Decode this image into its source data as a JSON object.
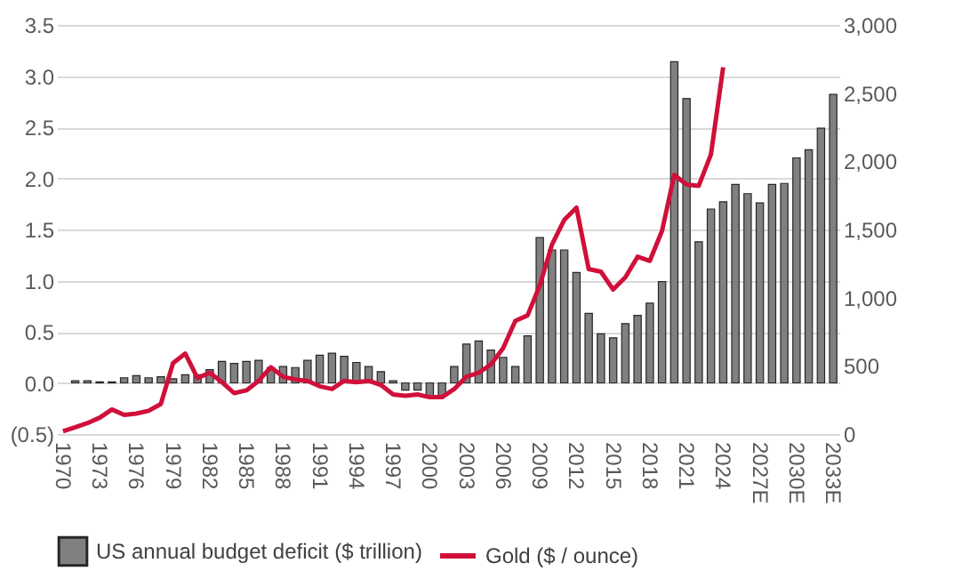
{
  "chart_data": {
    "type": "bar",
    "categories": [
      "1970",
      null,
      null,
      "1973",
      null,
      null,
      "1976",
      null,
      null,
      "1979",
      null,
      null,
      "1982",
      null,
      null,
      "1985",
      null,
      null,
      "1988",
      null,
      null,
      "1991",
      null,
      null,
      "1994",
      null,
      null,
      "1997",
      null,
      null,
      "2000",
      null,
      null,
      "2003",
      null,
      null,
      "2006",
      null,
      null,
      "2009",
      null,
      null,
      "2012",
      null,
      null,
      "2015",
      null,
      null,
      "2018",
      null,
      null,
      "2021",
      null,
      null,
      "2024",
      null,
      null,
      "2027E",
      null,
      null,
      "2030E",
      null,
      null,
      "2033E"
    ],
    "series": [
      {
        "name": "US annual budget deficit ($ trillion)",
        "color": "#808080",
        "values": [
          null,
          0.02,
          0.02,
          0.01,
          0.01,
          0.05,
          0.07,
          0.05,
          0.06,
          0.04,
          0.08,
          0.08,
          0.13,
          0.21,
          0.19,
          0.21,
          0.22,
          0.15,
          0.16,
          0.15,
          0.22,
          0.27,
          0.29,
          0.26,
          0.2,
          0.16,
          0.11,
          0.02,
          -0.07,
          -0.07,
          -0.13,
          -0.13,
          0.16,
          0.38,
          0.41,
          0.32,
          0.25,
          0.16,
          0.46,
          1.42,
          1.3,
          1.3,
          1.08,
          0.68,
          0.48,
          0.44,
          0.58,
          0.66,
          0.78,
          0.99,
          3.14,
          2.78,
          1.38,
          1.7,
          1.77,
          1.94,
          1.85,
          1.76,
          1.94,
          1.95,
          2.2,
          2.28,
          2.49,
          2.82
        ]
      },
      {
        "name": "Gold ($ / ounce)",
        "color": "#d0103a",
        "type": "line",
        "axis": "y2",
        "values": [
          20,
          50,
          80,
          120,
          180,
          140,
          150,
          170,
          220,
          520,
          590,
          410,
          450,
          380,
          300,
          320,
          390,
          490,
          420,
          400,
          390,
          350,
          330,
          390,
          380,
          390,
          360,
          290,
          280,
          290,
          270,
          270,
          330,
          420,
          450,
          510,
          630,
          830,
          870,
          1090,
          1390,
          1570,
          1660,
          1210,
          1190,
          1060,
          1150,
          1300,
          1270,
          1490,
          1900,
          1830,
          1820,
          2050,
          2690,
          null,
          null,
          null,
          null,
          null,
          null,
          null,
          null,
          null
        ]
      }
    ],
    "ylim": [
      -0.5,
      3.5
    ],
    "yticks": [
      {
        "value": -0.5,
        "label": "(0.5)"
      },
      {
        "value": 0,
        "label": "0.0"
      },
      {
        "value": 0.5,
        "label": "0.5"
      },
      {
        "value": 1,
        "label": "1.0"
      },
      {
        "value": 1.5,
        "label": "1.5"
      },
      {
        "value": 2,
        "label": "2.0"
      },
      {
        "value": 2.5,
        "label": "2.5"
      },
      {
        "value": 3,
        "label": "3.0"
      },
      {
        "value": 3.5,
        "label": "3.5"
      }
    ],
    "y2lim": [
      0,
      3000
    ],
    "y2ticks": [
      0,
      {
        "value": 500,
        "label": "500"
      },
      {
        "value": 1000,
        "label": "1,000"
      },
      {
        "value": 1500,
        "label": "1,500"
      },
      {
        "value": 2000,
        "label": "2,000"
      },
      {
        "value": 2500,
        "label": "2,500"
      },
      {
        "value": 3000,
        "label": "3,000"
      }
    ],
    "grid": "y",
    "legend": "bottom",
    "marker": "none",
    "line_style": "solid"
  }
}
